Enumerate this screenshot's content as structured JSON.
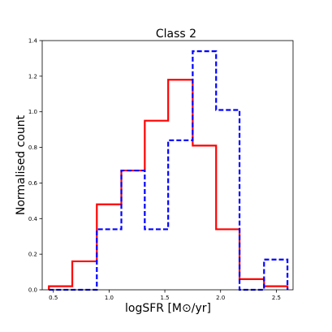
{
  "chart_data": {
    "type": "step",
    "title": "Class 2",
    "xlabel": "logSFR [M⊙/yr]",
    "ylabel": "Normalised count",
    "xlim": [
      0.4,
      2.65
    ],
    "ylim": [
      0.0,
      1.4
    ],
    "xticks": [
      0.5,
      1.0,
      1.5,
      2.0,
      2.5
    ],
    "xtick_labels": [
      "0.5",
      "1.0",
      "1.5",
      "2.0",
      "2.5"
    ],
    "yticks": [
      0.0,
      0.2,
      0.4,
      0.6,
      0.8,
      1.0,
      1.2,
      1.4
    ],
    "ytick_labels": [
      "0.0",
      "0.2",
      "0.4",
      "0.6",
      "0.8",
      "1.0",
      "1.2",
      "1.4"
    ],
    "bin_edges": [
      0.46,
      0.67,
      0.89,
      1.11,
      1.32,
      1.53,
      1.75,
      1.96,
      2.17,
      2.39,
      2.6
    ],
    "series": [
      {
        "color": "#ff0000",
        "linestyle": "solid",
        "values": [
          0.02,
          0.16,
          0.48,
          0.67,
          0.95,
          1.18,
          0.81,
          0.34,
          0.06,
          0.02
        ]
      },
      {
        "color": "#0000ff",
        "linestyle": "dashed",
        "values": [
          0.0,
          0.0,
          0.34,
          0.67,
          0.34,
          0.84,
          1.34,
          1.01,
          0.0,
          0.17
        ]
      }
    ]
  }
}
